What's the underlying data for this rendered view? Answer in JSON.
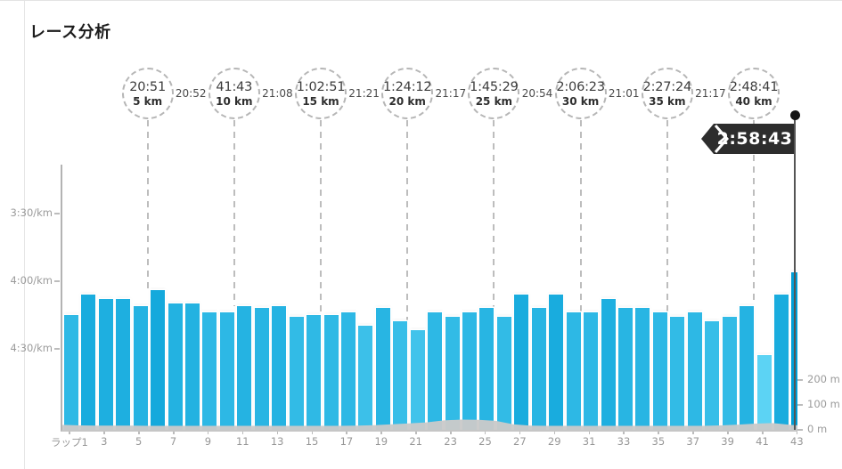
{
  "title": "レース分析",
  "finish": {
    "time": "2:58:43"
  },
  "splits": {
    "markers": [
      {
        "time": "20:51",
        "distance": "5 km",
        "km": 5
      },
      {
        "time": "41:43",
        "distance": "10 km",
        "km": 10
      },
      {
        "time": "1:02:51",
        "distance": "15 km",
        "km": 15
      },
      {
        "time": "1:24:12",
        "distance": "20 km",
        "km": 20
      },
      {
        "time": "1:45:29",
        "distance": "25 km",
        "km": 25
      },
      {
        "time": "2:06:23",
        "distance": "30 km",
        "km": 30
      },
      {
        "time": "2:27:24",
        "distance": "35 km",
        "km": 35
      },
      {
        "time": "2:48:41",
        "distance": "40 km",
        "km": 40
      }
    ],
    "segment_times": [
      "20:52",
      "21:08",
      "21:21",
      "21:17",
      "20:54",
      "21:01",
      "21:17"
    ]
  },
  "chart_data": {
    "type": "bar",
    "title": "レース分析",
    "x_axis": {
      "unit_prefix": "ラップ",
      "labels": [
        "ラップ1",
        "3",
        "5",
        "7",
        "9",
        "11",
        "13",
        "15",
        "17",
        "19",
        "21",
        "23",
        "25",
        "27",
        "29",
        "31",
        "33",
        "35",
        "37",
        "39",
        "41",
        "43"
      ]
    },
    "pace_axis": {
      "label_format": "m:ss/km",
      "inverted": true,
      "ticks": [
        {
          "label": "3:30/km",
          "sec": 210
        },
        {
          "label": "4:00/km",
          "sec": 240
        },
        {
          "label": "4:30/km",
          "sec": 270
        }
      ]
    },
    "elevation_axis": {
      "ticks": [
        {
          "label": "200 m",
          "m": 200
        },
        {
          "label": "100 m",
          "m": 100
        },
        {
          "label": "0 m",
          "m": 0
        }
      ]
    },
    "laps": 43,
    "lap_pace": [
      "4:15",
      "4:06",
      "4:08",
      "4:08",
      "4:11",
      "4:04",
      "4:10",
      "4:10",
      "4:14",
      "4:14",
      "4:11",
      "4:12",
      "4:11",
      "4:16",
      "4:15",
      "4:15",
      "4:14",
      "4:20",
      "4:12",
      "4:18",
      "4:22",
      "4:14",
      "4:16",
      "4:14",
      "4:12",
      "4:16",
      "4:06",
      "4:12",
      "4:06",
      "4:14",
      "4:14",
      "4:08",
      "4:12",
      "4:12",
      "4:14",
      "4:16",
      "4:14",
      "4:18",
      "4:16",
      "4:11",
      "4:33",
      "4:06",
      "3:56"
    ],
    "lap_pace_sec": [
      255,
      246,
      248,
      248,
      251,
      244,
      250,
      250,
      254,
      254,
      251,
      252,
      251,
      256,
      255,
      255,
      254,
      260,
      252,
      258,
      262,
      254,
      256,
      254,
      252,
      256,
      246,
      252,
      246,
      254,
      254,
      248,
      252,
      252,
      254,
      256,
      254,
      258,
      256,
      251,
      273,
      246,
      236
    ],
    "elevation_profile_m": [
      20,
      18,
      17,
      17,
      17,
      16,
      16,
      16,
      16,
      16,
      16,
      16,
      16,
      16,
      16,
      16,
      16,
      17,
      19,
      22,
      26,
      30,
      38,
      41,
      40,
      36,
      22,
      17,
      16,
      16,
      16,
      16,
      16,
      16,
      16,
      16,
      16,
      16,
      18,
      21,
      25,
      27,
      20,
      16
    ],
    "colors": {
      "bar_fast": "#009ed6",
      "bar_slow": "#5cd3f4",
      "elevation": "#cacaca",
      "marker_dash": "#bdbdbd",
      "flag_bg": "#2d2d2d",
      "axis_text": "#9b9b9b"
    }
  }
}
